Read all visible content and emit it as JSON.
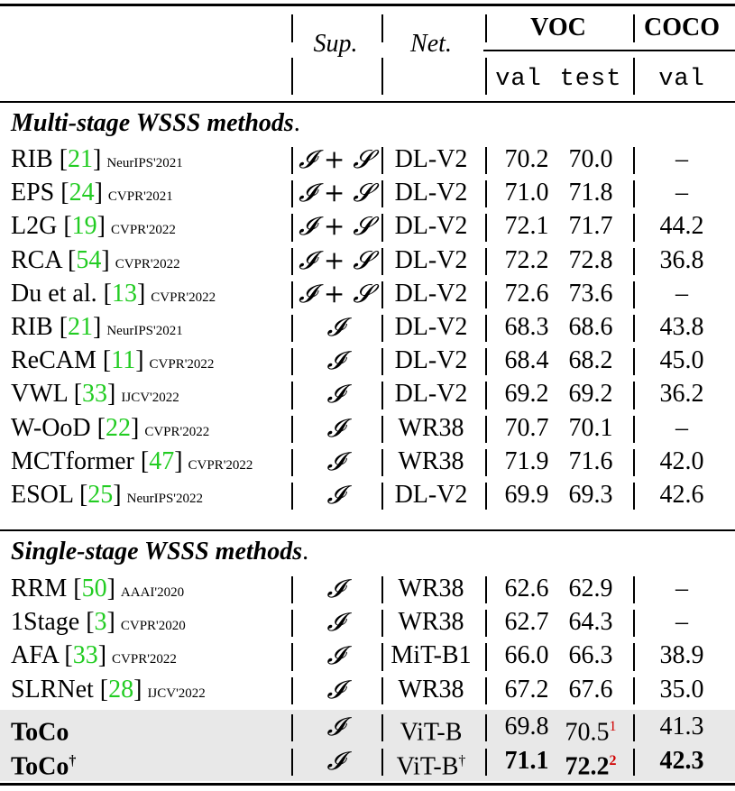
{
  "header": {
    "sup": "Sup.",
    "net": "Net.",
    "voc": "VOC",
    "coco": "COCO",
    "voc_val": "val",
    "voc_test": "test",
    "coco_val": "val"
  },
  "sections": [
    {
      "title": "Multi-stage WSSS methods",
      "rows": [
        {
          "method": "RIB",
          "ref": "21",
          "venue": "NeurIPS'2021",
          "sup": "𝓘 + 𝓢",
          "net": "DL-V2",
          "val": "70.2",
          "test": "70.0",
          "coco": "–"
        },
        {
          "method": "EPS",
          "ref": "24",
          "venue": "CVPR'2021",
          "sup": "𝓘 + 𝓢",
          "net": "DL-V2",
          "val": "71.0",
          "test": "71.8",
          "coco": "–"
        },
        {
          "method": "L2G",
          "ref": "19",
          "venue": "CVPR'2022",
          "sup": "𝓘 + 𝓢",
          "net": "DL-V2",
          "val": "72.1",
          "test": "71.7",
          "coco": "44.2"
        },
        {
          "method": "RCA",
          "ref": "54",
          "venue": "CVPR'2022",
          "sup": "𝓘 + 𝓢",
          "net": "DL-V2",
          "val": "72.2",
          "test": "72.8",
          "coco": "36.8"
        },
        {
          "method": "Du et al.",
          "ref": "13",
          "venue": "CVPR'2022",
          "sup": "𝓘 + 𝓢",
          "net": "DL-V2",
          "val": "72.6",
          "test": "73.6",
          "coco": "–"
        },
        {
          "method": "RIB",
          "ref": "21",
          "venue": "NeurIPS'2021",
          "sup": "𝓘",
          "net": "DL-V2",
          "val": "68.3",
          "test": "68.6",
          "coco": "43.8"
        },
        {
          "method": "ReCAM",
          "ref": "11",
          "venue": "CVPR'2022",
          "sup": "𝓘",
          "net": "DL-V2",
          "val": "68.4",
          "test": "68.2",
          "coco": "45.0"
        },
        {
          "method": "VWL",
          "ref": "33",
          "venue": "IJCV'2022",
          "sup": "𝓘",
          "net": "DL-V2",
          "val": "69.2",
          "test": "69.2",
          "coco": "36.2"
        },
        {
          "method": "W-OoD",
          "ref": "22",
          "venue": "CVPR'2022",
          "sup": "𝓘",
          "net": "WR38",
          "val": "70.7",
          "test": "70.1",
          "coco": "–"
        },
        {
          "method": "MCTformer",
          "ref": "47",
          "venue": "CVPR'2022",
          "sup": "𝓘",
          "net": "WR38",
          "val": "71.9",
          "test": "71.6",
          "coco": "42.0"
        },
        {
          "method": "ESOL",
          "ref": "25",
          "venue": "NeurIPS'2022",
          "sup": "𝓘",
          "net": "DL-V2",
          "val": "69.9",
          "test": "69.3",
          "coco": "42.6"
        }
      ]
    },
    {
      "title": "Single-stage WSSS methods",
      "rows": [
        {
          "method": "RRM",
          "ref": "50",
          "venue": "AAAI'2020",
          "sup": "𝓘",
          "net": "WR38",
          "val": "62.6",
          "test": "62.9",
          "coco": "–"
        },
        {
          "method": "1Stage",
          "ref": "3",
          "venue": "CVPR'2020",
          "sup": "𝓘",
          "net": "WR38",
          "val": "62.7",
          "test": "64.3",
          "coco": "–"
        },
        {
          "method": "AFA",
          "ref": "33",
          "venue": "CVPR'2022",
          "sup": "𝓘",
          "net": "MiT-B1",
          "val": "66.0",
          "test": "66.3",
          "coco": "38.9"
        },
        {
          "method": "SLRNet",
          "ref": "28",
          "venue": "IJCV'2022",
          "sup": "𝓘",
          "net": "WR38",
          "val": "67.2",
          "test": "67.6",
          "coco": "35.0"
        }
      ]
    }
  ],
  "ours": [
    {
      "method": "ToCo",
      "method_sup": "",
      "sup": "𝓘",
      "net": "ViT-B",
      "net_sup": "",
      "val": "69.8",
      "test": "70.5",
      "test_sup": "1",
      "coco": "41.3"
    },
    {
      "method": "ToCo",
      "method_sup": "†",
      "sup": "𝓘",
      "net": "ViT-B",
      "net_sup": "†",
      "val": "71.1",
      "test": "72.2",
      "test_sup": "2",
      "coco": "42.3"
    }
  ]
}
